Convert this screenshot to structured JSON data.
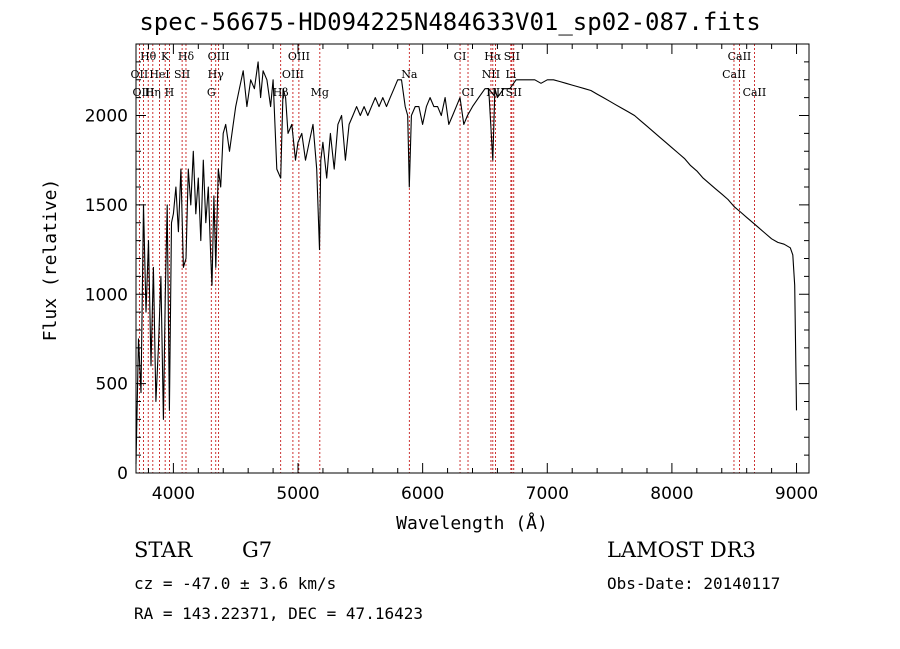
{
  "chart_data": {
    "type": "line",
    "title": "spec-56675-HD094225N484633V01_sp02-087.fits",
    "xlabel": "Wavelength (Å)",
    "ylabel": "Flux (relative)",
    "xlim": [
      3700,
      9100
    ],
    "ylim": [
      0,
      2400
    ],
    "xticks": [
      4000,
      5000,
      6000,
      7000,
      8000,
      9000
    ],
    "yticks": [
      0,
      500,
      1000,
      1500,
      2000
    ],
    "grid": false,
    "series": [
      {
        "x": [
          3700,
          3720,
          3740,
          3760,
          3780,
          3800,
          3820,
          3840,
          3860,
          3880,
          3900,
          3920,
          3935,
          3950,
          3968,
          3985,
          4000,
          4020,
          4040,
          4060,
          4080,
          4101,
          4120,
          4140,
          4160,
          4180,
          4200,
          4220,
          4240,
          4260,
          4280,
          4300,
          4310,
          4325,
          4340,
          4360,
          4380,
          4400,
          4420,
          4450,
          4480,
          4500,
          4530,
          4560,
          4590,
          4620,
          4650,
          4680,
          4700,
          4720,
          4750,
          4780,
          4800,
          4830,
          4861,
          4880,
          4900,
          4920,
          4950,
          4980,
          5000,
          5030,
          5060,
          5090,
          5120,
          5150,
          5172,
          5183,
          5200,
          5230,
          5260,
          5290,
          5320,
          5350,
          5380,
          5410,
          5440,
          5470,
          5500,
          5530,
          5560,
          5590,
          5620,
          5650,
          5680,
          5710,
          5740,
          5770,
          5800,
          5830,
          5860,
          5880,
          5893,
          5910,
          5940,
          5970,
          6000,
          6030,
          6060,
          6090,
          6120,
          6150,
          6180,
          6210,
          6240,
          6270,
          6300,
          6330,
          6360,
          6400,
          6450,
          6500,
          6530,
          6563,
          6580,
          6600,
          6650,
          6700,
          6750,
          6800,
          6850,
          6900,
          6950,
          7000,
          7050,
          7100,
          7150,
          7200,
          7250,
          7300,
          7350,
          7400,
          7450,
          7500,
          7550,
          7600,
          7650,
          7700,
          7750,
          7800,
          7850,
          7900,
          7950,
          8000,
          8050,
          8100,
          8150,
          8200,
          8250,
          8300,
          8350,
          8400,
          8450,
          8500,
          8550,
          8600,
          8650,
          8700,
          8750,
          8800,
          8850,
          8900,
          8950,
          8970,
          8985,
          9000
        ],
        "y": [
          50,
          750,
          450,
          1500,
          900,
          1300,
          600,
          1150,
          400,
          700,
          1100,
          300,
          1000,
          1500,
          350,
          1400,
          1450,
          1600,
          1350,
          1700,
          1150,
          1200,
          1700,
          1500,
          1800,
          1450,
          1650,
          1300,
          1750,
          1400,
          1600,
          1200,
          1050,
          1550,
          1150,
          1700,
          1600,
          1900,
          1950,
          1800,
          1950,
          2050,
          2150,
          2250,
          2050,
          2200,
          2150,
          2300,
          2100,
          2250,
          2200,
          2050,
          2200,
          1700,
          1650,
          2150,
          2100,
          1900,
          1950,
          1750,
          1850,
          1900,
          1750,
          1850,
          1950,
          1700,
          1250,
          1750,
          1850,
          1650,
          1900,
          1700,
          1950,
          2000,
          1750,
          1950,
          2000,
          2050,
          2000,
          2050,
          2000,
          2050,
          2100,
          2050,
          2100,
          2050,
          2100,
          2150,
          2200,
          2200,
          2050,
          2000,
          1600,
          2000,
          2050,
          2050,
          1950,
          2050,
          2100,
          2050,
          2050,
          2000,
          2100,
          1950,
          2000,
          2050,
          2100,
          1950,
          2000,
          2050,
          2100,
          2150,
          2150,
          1750,
          2150,
          2100,
          2150,
          2150,
          2200,
          2200,
          2200,
          2200,
          2180,
          2200,
          2200,
          2190,
          2180,
          2170,
          2160,
          2150,
          2140,
          2120,
          2100,
          2080,
          2060,
          2040,
          2020,
          2000,
          1970,
          1940,
          1910,
          1880,
          1850,
          1820,
          1790,
          1760,
          1720,
          1690,
          1650,
          1620,
          1590,
          1560,
          1530,
          1490,
          1460,
          1430,
          1400,
          1370,
          1340,
          1310,
          1290,
          1280,
          1260,
          1220,
          1050,
          350
        ]
      }
    ],
    "line_markers": [
      {
        "label": "Hθ",
        "x": 3798,
        "row": 1
      },
      {
        "label": "K",
        "x": 3934,
        "row": 1
      },
      {
        "label": "Hδ",
        "x": 4101,
        "row": 1
      },
      {
        "label": "OII",
        "x": 3727,
        "row": 2
      },
      {
        "label": "HeI",
        "x": 3889,
        "row": 2
      },
      {
        "label": "SII",
        "x": 4070,
        "row": 2
      },
      {
        "label": "OIII",
        "x": 3760,
        "row": 3
      },
      {
        "label": "Hη",
        "x": 3835,
        "row": 3
      },
      {
        "label": "H",
        "x": 3968,
        "row": 3
      },
      {
        "label": "OIII",
        "x": 4363,
        "row": 1
      },
      {
        "label": "Hγ",
        "x": 4340,
        "row": 2
      },
      {
        "label": "G",
        "x": 4304,
        "row": 3
      },
      {
        "label": "OIII",
        "x": 5007,
        "row": 1
      },
      {
        "label": "OIII",
        "x": 4959,
        "row": 2
      },
      {
        "label": "Hβ",
        "x": 4861,
        "row": 3
      },
      {
        "label": "Mg",
        "x": 5175,
        "row": 3
      },
      {
        "label": "Na",
        "x": 5893,
        "row": 2
      },
      {
        "label": "CI",
        "x": 6300,
        "row": 1
      },
      {
        "label": "CI",
        "x": 6364,
        "row": 3
      },
      {
        "label": "Hα",
        "x": 6563,
        "row": 1
      },
      {
        "label": "SII",
        "x": 6716,
        "row": 1
      },
      {
        "label": "NII",
        "x": 6548,
        "row": 2
      },
      {
        "label": "Li",
        "x": 6708,
        "row": 2
      },
      {
        "label": "NII",
        "x": 6584,
        "row": 3
      },
      {
        "label": "SII",
        "x": 6731,
        "row": 3
      },
      {
        "label": "CaII",
        "x": 8542,
        "row": 1
      },
      {
        "label": "CaII",
        "x": 8498,
        "row": 2
      },
      {
        "label": "CaII",
        "x": 8662,
        "row": 3
      }
    ]
  },
  "info": {
    "object_class": "STAR",
    "subclass": "G7",
    "survey": "LAMOST DR3",
    "cz": "cz = -47.0 ± 3.6 km/s",
    "obs_date": "Obs-Date: 20140117",
    "coords": "RA = 143.22371, DEC =  47.16423"
  }
}
